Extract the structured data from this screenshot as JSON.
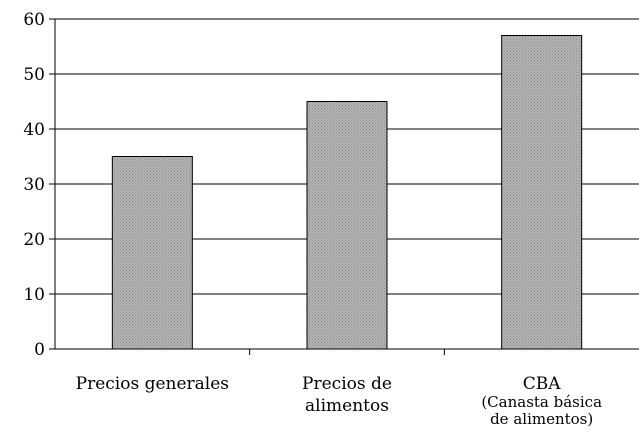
{
  "chart_data": {
    "type": "bar",
    "categories": [
      {
        "lines": [
          "Precios generales"
        ]
      },
      {
        "lines": [
          "Precios de",
          "alimentos"
        ]
      },
      {
        "lines": [
          "CBA"
        ],
        "sublines": [
          "(Canasta básica",
          "de alimentos)"
        ]
      }
    ],
    "values": [
      35,
      45,
      57
    ],
    "yticks": [
      0,
      10,
      20,
      30,
      40,
      50,
      60
    ],
    "ylim": [
      0,
      60
    ],
    "grid": true,
    "legend": "none",
    "colors": {
      "bar_fill": "#a9a9a9",
      "bar_stroke": "#000000",
      "grid": "#000000",
      "axis": "#000000"
    }
  }
}
